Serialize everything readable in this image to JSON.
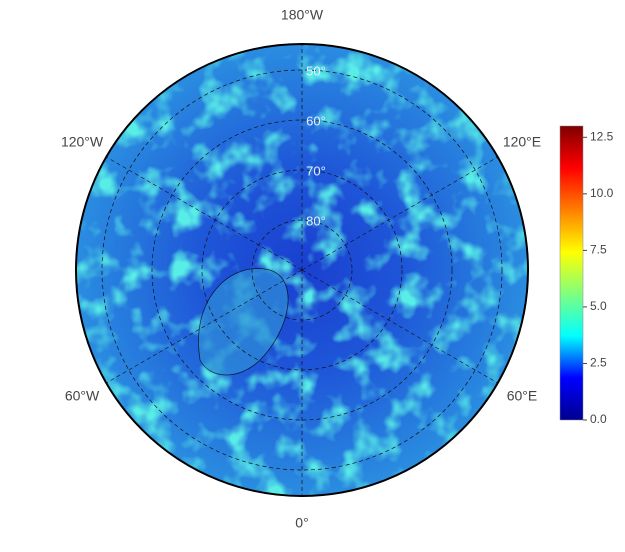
{
  "map": {
    "projection": "north polar stereographic",
    "meridians": [
      {
        "value": -180,
        "label": "180°W"
      },
      {
        "value": -120,
        "label": "120°W"
      },
      {
        "value": -60,
        "label": "60°W"
      },
      {
        "value": 0,
        "label": "0°"
      },
      {
        "value": 60,
        "label": "60°E"
      },
      {
        "value": 120,
        "label": "120°E"
      }
    ],
    "parallels": [
      {
        "value": 50,
        "label": "50°"
      },
      {
        "value": 60,
        "label": "60°"
      },
      {
        "value": 70,
        "label": "70°"
      },
      {
        "value": 80,
        "label": "80°"
      }
    ],
    "colorbar": {
      "colormap": "jet",
      "clim": [
        0,
        13
      ],
      "ticks": [
        {
          "value": 0,
          "label": "0.0"
        },
        {
          "value": 2.5,
          "label": "2.5"
        },
        {
          "value": 5,
          "label": "5.0"
        },
        {
          "value": 7.5,
          "label": "7.5"
        },
        {
          "value": 10,
          "label": "10.0"
        },
        {
          "value": 12.5,
          "label": "12.5"
        }
      ]
    }
  }
}
